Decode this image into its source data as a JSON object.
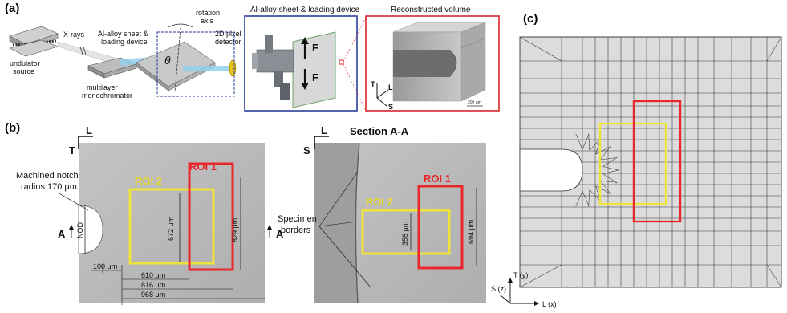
{
  "panels": {
    "a": {
      "label": "(a)",
      "undulator": "undulator\nsource",
      "xrays": "X-rays",
      "monochromator": "multilayer\nmonochromator",
      "sheet_device": "Al-alloy sheet &\nloading device",
      "rotation_axis": "rotation\naxis",
      "detector": "2D pixel\ndetector",
      "theta": "θ",
      "inset1_title": "Al-alloy sheet & loading device",
      "force": "F",
      "inset2_title": "Reconstructed volume",
      "scale": "200 μm",
      "axes": {
        "t": "T",
        "l": "L",
        "s": "S"
      }
    },
    "b": {
      "label": "(b)",
      "left": {
        "axis_l": "L",
        "axis_t": "T",
        "notch_label_1": "Machined notch",
        "notch_label_2": "radius 170 μm",
        "roi1": "ROI 1",
        "roi2": "ROI 2",
        "section_marker": "A",
        "nod": "NOD",
        "dim_672": "672 μm",
        "dim_829": "829 μm",
        "dim_100": "100 μm",
        "dim_610": "610 μm",
        "dim_816": "816 μm",
        "dim_968": "968 μm"
      },
      "right": {
        "title": "Section A-A",
        "axis_l": "L",
        "axis_s": "S",
        "roi1": "ROI 1",
        "roi2": "ROI 2",
        "specimen_1": "Specimen",
        "specimen_2": "borders",
        "dim_358": "358 μm",
        "dim_694": "694 μm"
      }
    },
    "c": {
      "label": "(c)",
      "axis_t": "T (y)",
      "axis_s": "S (z)",
      "axis_l": "L (x)"
    }
  },
  "colors": {
    "roi1": "#e8282d",
    "roi2": "#efe23a",
    "inset_frame_blue": "#2b3f9c",
    "inset_frame_red": "#d9262b",
    "micrograph": "#b9b9b9",
    "mesh_fill": "#dcdcdc"
  }
}
